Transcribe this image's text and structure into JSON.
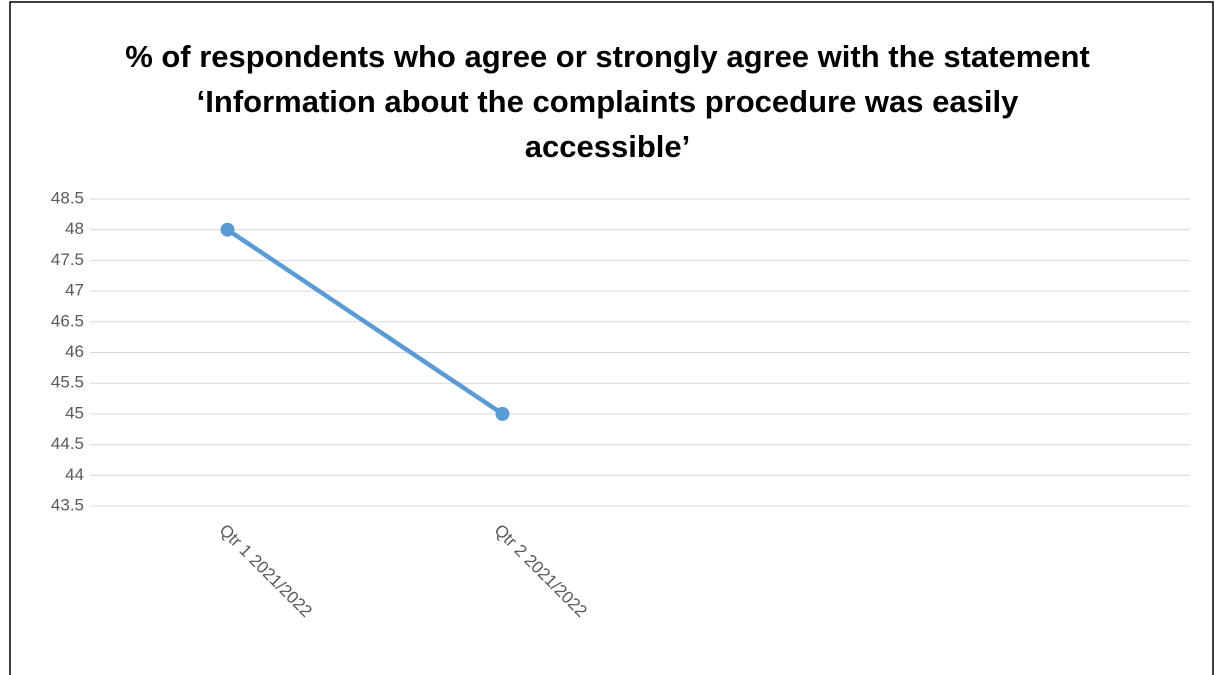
{
  "chart_data": {
    "type": "line",
    "title": "% of respondents who agree or strongly agree with the statement ‘Information about the complaints procedure was easily accessible’",
    "categories": [
      "Qtr 1 2021/2022",
      "Qtr 2 2021/2022",
      null,
      null
    ],
    "values": [
      48,
      45,
      null,
      null
    ],
    "color": "#5b9bd5",
    "ylim": [
      43.5,
      48.5
    ],
    "yticks": [
      43.5,
      44,
      44.5,
      45,
      45.5,
      46,
      46.5,
      47,
      47.5,
      48,
      48.5
    ],
    "grid": true
  }
}
